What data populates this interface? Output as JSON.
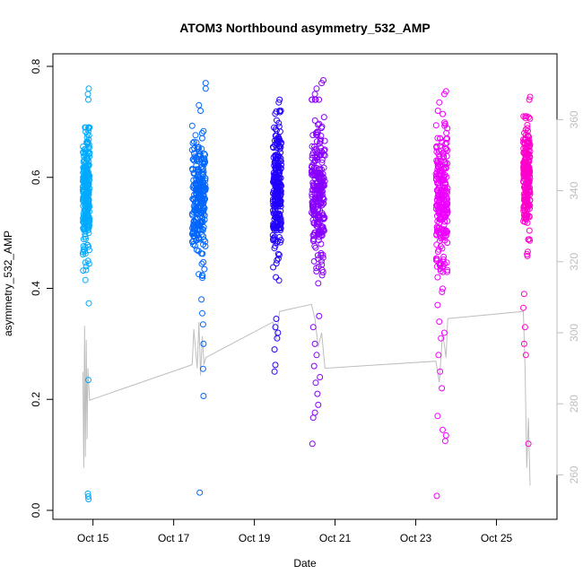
{
  "chart_data": {
    "type": "scatter",
    "title": "ATOM3 Northbound asymmetry_532_AMP",
    "xlabel": "Date",
    "ylabel": "asymmetry_532_AMP",
    "xlim": [
      "2016-10-14T00:10",
      "2016-10-26T12:00"
    ],
    "ylim": [
      0,
      0.8
    ],
    "y2lim": [
      250,
      375
    ],
    "x_ticks": [
      {
        "date": "2016-10-15",
        "label": "Oct 15"
      },
      {
        "date": "2016-10-17",
        "label": "Oct 17"
      },
      {
        "date": "2016-10-19",
        "label": "Oct 19"
      },
      {
        "date": "2016-10-21",
        "label": "Oct 21"
      },
      {
        "date": "2016-10-23",
        "label": "Oct 23"
      },
      {
        "date": "2016-10-25",
        "label": "Oct 25"
      }
    ],
    "y_ticks": [
      {
        "value": 0.0,
        "label": "0.0"
      },
      {
        "value": 0.2,
        "label": "0.2"
      },
      {
        "value": 0.4,
        "label": "0.4"
      },
      {
        "value": 0.6,
        "label": "0.6"
      },
      {
        "value": 0.8,
        "label": "0.8"
      }
    ],
    "y2_ticks": [
      {
        "value": 260,
        "label": "260"
      },
      {
        "value": 280,
        "label": "280"
      },
      {
        "value": 300,
        "label": "300"
      },
      {
        "value": 320,
        "label": "320"
      },
      {
        "value": 340,
        "label": "340"
      },
      {
        "value": 360,
        "label": "360"
      }
    ],
    "grid": false,
    "series": [
      {
        "color": "#00aaff",
        "start": "2016-10-14T18:00",
        "end": "2016-10-14T22:00",
        "median": 0.57,
        "spread": 0.05,
        "min": 0.4,
        "max": 0.69,
        "outliers": [
          [
            "2016-10-14T21:30",
            0.76
          ],
          [
            "2016-10-14T21:00",
            0.75
          ],
          [
            "2016-10-14T21:15",
            0.74
          ],
          [
            "2016-10-14T21:15",
            0.235
          ],
          [
            "2016-10-14T21:30",
            0.373
          ],
          [
            "2016-10-14T21:00",
            0.03
          ],
          [
            "2016-10-14T21:10",
            0.025
          ],
          [
            "2016-10-14T21:20",
            0.02
          ],
          [
            "2016-10-14T19:30",
            0.415
          ],
          [
            "2016-10-14T20:00",
            0.44
          ]
        ]
      },
      {
        "color": "#0066ff",
        "start": "2016-10-17T11:00",
        "end": "2016-10-17T19:00",
        "median": 0.56,
        "spread": 0.055,
        "min": 0.4,
        "max": 0.71,
        "outliers": [
          [
            "2016-10-17T19:00",
            0.77
          ],
          [
            "2016-10-17T19:00",
            0.76
          ],
          [
            "2016-10-17T15:00",
            0.73
          ],
          [
            "2016-10-17T16:00",
            0.72
          ],
          [
            "2016-10-17T17:00",
            0.355
          ],
          [
            "2016-10-17T17:30",
            0.335
          ],
          [
            "2016-10-17T17:45",
            0.3
          ],
          [
            "2016-10-17T17:30",
            0.255
          ],
          [
            "2016-10-17T17:45",
            0.206
          ],
          [
            "2016-10-17T15:30",
            0.032
          ],
          [
            "2016-10-17T16:30",
            0.38
          ]
        ]
      },
      {
        "color": "#2200ff",
        "start": "2016-10-19T11:00",
        "end": "2016-10-19T16:00",
        "median": 0.58,
        "spread": 0.06,
        "min": 0.39,
        "max": 0.72,
        "outliers": [
          [
            "2016-10-19T15:00",
            0.74
          ],
          [
            "2016-10-19T14:30",
            0.735
          ],
          [
            "2016-10-19T13:00",
            0.345
          ],
          [
            "2016-10-19T12:30",
            0.33
          ],
          [
            "2016-10-19T12:00",
            0.29
          ],
          [
            "2016-10-19T13:30",
            0.31
          ],
          [
            "2016-10-19T12:30",
            0.262
          ],
          [
            "2016-10-19T12:00",
            0.25
          ],
          [
            "2016-10-19T14:00",
            0.32
          ]
        ]
      },
      {
        "color": "#8800ff",
        "start": "2016-10-20T10:00",
        "end": "2016-10-20T18:00",
        "median": 0.57,
        "spread": 0.065,
        "min": 0.38,
        "max": 0.74,
        "outliers": [
          [
            "2016-10-20T17:00",
            0.775
          ],
          [
            "2016-10-20T16:00",
            0.77
          ],
          [
            "2016-10-20T13:00",
            0.76
          ],
          [
            "2016-10-20T12:00",
            0.75
          ],
          [
            "2016-10-20T11:00",
            0.33
          ],
          [
            "2016-10-20T12:00",
            0.3
          ],
          [
            "2016-10-20T13:00",
            0.28
          ],
          [
            "2016-10-20T11:30",
            0.26
          ],
          [
            "2016-10-20T12:30",
            0.23
          ],
          [
            "2016-10-20T13:30",
            0.21
          ],
          [
            "2016-10-20T14:00",
            0.19
          ],
          [
            "2016-10-20T12:00",
            0.176
          ],
          [
            "2016-10-20T11:00",
            0.167
          ],
          [
            "2016-10-20T10:30",
            0.12
          ],
          [
            "2016-10-20T15:00",
            0.24
          ],
          [
            "2016-10-20T14:30",
            0.35
          ]
        ]
      },
      {
        "color": "#ee00ff",
        "start": "2016-10-23T12:00",
        "end": "2016-10-23T19:00",
        "median": 0.56,
        "spread": 0.065,
        "min": 0.38,
        "max": 0.72,
        "outliers": [
          [
            "2016-10-23T18:00",
            0.755
          ],
          [
            "2016-10-23T17:00",
            0.75
          ],
          [
            "2016-10-23T14:00",
            0.735
          ],
          [
            "2016-10-23T13:00",
            0.37
          ],
          [
            "2016-10-23T14:00",
            0.34
          ],
          [
            "2016-10-23T15:00",
            0.31
          ],
          [
            "2016-10-23T13:30",
            0.28
          ],
          [
            "2016-10-23T14:30",
            0.25
          ],
          [
            "2016-10-23T15:30",
            0.22
          ],
          [
            "2016-10-23T13:00",
            0.17
          ],
          [
            "2016-10-23T18:00",
            0.135
          ],
          [
            "2016-10-23T17:30",
            0.125
          ],
          [
            "2016-10-23T16:00",
            0.145
          ],
          [
            "2016-10-23T12:30",
            0.026
          ],
          [
            "2016-10-23T17:00",
            0.32
          ]
        ]
      },
      {
        "color": "#ff00cc",
        "start": "2016-10-25T16:00",
        "end": "2016-10-25T20:00",
        "median": 0.6,
        "spread": 0.05,
        "min": 0.42,
        "max": 0.71,
        "outliers": [
          [
            "2016-10-25T20:00",
            0.745
          ],
          [
            "2016-10-25T19:30",
            0.74
          ],
          [
            "2016-10-25T16:30",
            0.39
          ],
          [
            "2016-10-25T16:00",
            0.365
          ],
          [
            "2016-10-25T17:00",
            0.33
          ],
          [
            "2016-10-25T16:30",
            0.3
          ],
          [
            "2016-10-25T17:30",
            0.28
          ],
          [
            "2016-10-25T19:00",
            0.12
          ]
        ]
      }
    ],
    "line_series": {
      "axis": "right",
      "color": "#bebebe",
      "points": [
        [
          "2016-10-14T18:00",
          289
        ],
        [
          "2016-10-14T18:30",
          262
        ],
        [
          "2016-10-14T19:00",
          302
        ],
        [
          "2016-10-14T19:30",
          265
        ],
        [
          "2016-10-14T20:00",
          298
        ],
        [
          "2016-10-14T20:30",
          270
        ],
        [
          "2016-10-14T21:00",
          290
        ],
        [
          "2016-10-14T22:00",
          281
        ],
        [
          "2016-10-17T11:00",
          291
        ],
        [
          "2016-10-17T12:00",
          301
        ],
        [
          "2016-10-17T14:00",
          290
        ],
        [
          "2016-10-17T15:00",
          303
        ],
        [
          "2016-10-17T16:00",
          288
        ],
        [
          "2016-10-17T17:00",
          299
        ],
        [
          "2016-10-17T18:00",
          291
        ],
        [
          "2016-10-17T19:00",
          293
        ],
        [
          "2016-10-19T11:00",
          303
        ],
        [
          "2016-10-19T13:00",
          298
        ],
        [
          "2016-10-19T15:00",
          306
        ],
        [
          "2016-10-20T10:00",
          308
        ],
        [
          "2016-10-20T12:00",
          304
        ],
        [
          "2016-10-20T14:00",
          296
        ],
        [
          "2016-10-20T16:00",
          300
        ],
        [
          "2016-10-20T18:00",
          290
        ],
        [
          "2016-10-23T12:00",
          292
        ],
        [
          "2016-10-23T14:00",
          286
        ],
        [
          "2016-10-23T16:00",
          300
        ],
        [
          "2016-10-23T18:00",
          293
        ],
        [
          "2016-10-23T19:00",
          304
        ],
        [
          "2016-10-25T16:00",
          306
        ],
        [
          "2016-10-25T17:00",
          290
        ],
        [
          "2016-10-25T18:00",
          262
        ],
        [
          "2016-10-25T19:00",
          276
        ],
        [
          "2016-10-25T20:00",
          257
        ]
      ]
    }
  }
}
